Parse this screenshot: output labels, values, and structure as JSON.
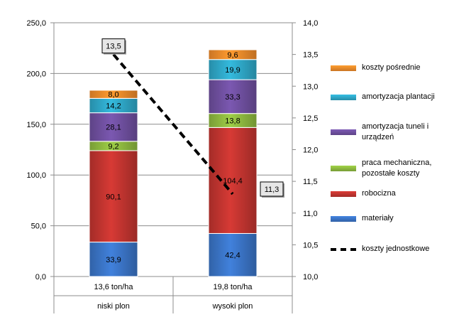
{
  "chart_data": {
    "type": "bar",
    "stacked": true,
    "categories": [
      [
        "13,6 ton/ha",
        "niski plon"
      ],
      [
        "19,8 ton/ha",
        "wysoki plon"
      ]
    ],
    "series": [
      {
        "name": "materiały",
        "color": "#3a73c4",
        "values": [
          33.9,
          42.4
        ],
        "labels": [
          "33,9",
          "42,4"
        ]
      },
      {
        "name": "robocizna",
        "color": "#c0342f",
        "values": [
          90.1,
          104.4
        ],
        "labels": [
          "90,1",
          "104,4"
        ]
      },
      {
        "name": "praca mechaniczna, pozostałe koszty",
        "color": "#8db83f",
        "values": [
          9.2,
          13.8
        ],
        "labels": [
          "9,2",
          "13,8"
        ]
      },
      {
        "name": "amortyzacja tuneli i urządzeń",
        "color": "#6e4f9e",
        "values": [
          28.1,
          33.3
        ],
        "labels": [
          "28,1",
          "33,3"
        ]
      },
      {
        "name": "amortyzacja plantacji",
        "color": "#2ea6c6",
        "values": [
          14.2,
          19.9
        ],
        "labels": [
          "14,2",
          "19,9"
        ]
      },
      {
        "name": "koszty pośrednie",
        "color": "#ee8a2a",
        "values": [
          8.0,
          9.6
        ],
        "labels": [
          "8,0",
          "9,6"
        ]
      }
    ],
    "line_series": {
      "name": "koszty jednostkowe",
      "axis": "secondary",
      "style": "dashed",
      "color": "#000000",
      "values": [
        13.5,
        11.3
      ],
      "labels": [
        "13,5",
        "11,3"
      ]
    },
    "y_axis": {
      "min": 0,
      "max": 250,
      "step": 50,
      "tick_labels": [
        "0,0",
        "50,0",
        "100,0",
        "150,0",
        "200,0",
        "250,0"
      ]
    },
    "y2_axis": {
      "min": 10.0,
      "max": 14.0,
      "step": 0.5,
      "tick_labels": [
        "10,0",
        "10,5",
        "11,0",
        "11,5",
        "12,0",
        "12,5",
        "13,0",
        "13,5",
        "14,0"
      ]
    },
    "grid": true,
    "legend_position": "right"
  }
}
